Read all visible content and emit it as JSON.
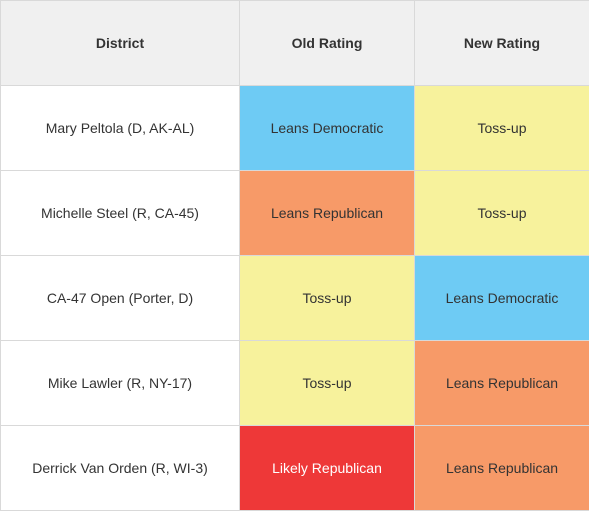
{
  "headers": {
    "district": "District",
    "old_rating": "Old Rating",
    "new_rating": "New Rating"
  },
  "rows": [
    {
      "district": "Mary Peltola (D, AK-AL)",
      "old_rating": "Leans Democratic",
      "new_rating": "Toss-up"
    },
    {
      "district": "Michelle Steel (R, CA-45)",
      "old_rating": "Leans Republican",
      "new_rating": "Toss-up"
    },
    {
      "district": "CA-47 Open (Porter, D)",
      "old_rating": "Toss-up",
      "new_rating": "Leans Democratic"
    },
    {
      "district": "Mike Lawler (R, NY-17)",
      "old_rating": "Toss-up",
      "new_rating": "Leans Republican"
    },
    {
      "district": "Derrick Van Orden (R, WI-3)",
      "old_rating": "Likely Republican",
      "new_rating": "Leans Republican"
    }
  ],
  "rating_colors": {
    "Leans Democratic": "#6ecbf4",
    "Leans Republican": "#f79a68",
    "Toss-up": "#f7f29c",
    "Likely Republican": "#ee3838"
  }
}
